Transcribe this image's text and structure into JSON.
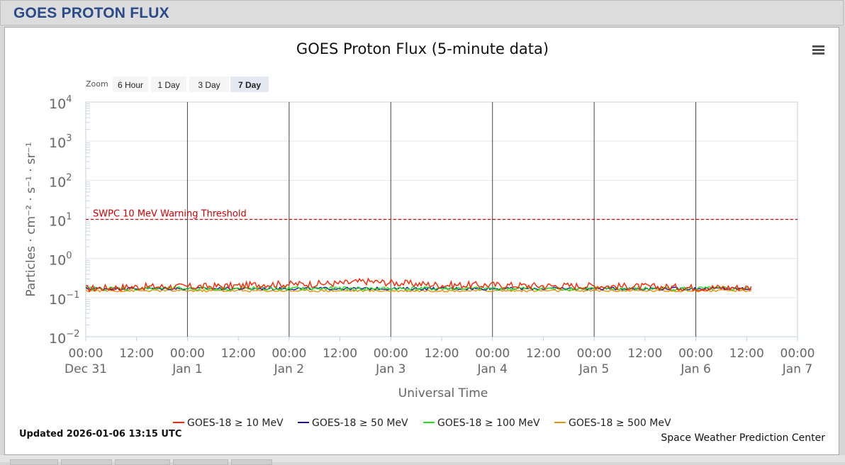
{
  "panel": {
    "title": "GOES PROTON FLUX"
  },
  "chart": {
    "title": "GOES Proton Flux (5-minute data)",
    "menu_icon": "hamburger-menu-icon",
    "zoom_label": "Zoom",
    "zoom_buttons": [
      "6 Hour",
      "1 Day",
      "3 Day",
      "7 Day"
    ],
    "zoom_active": "7 Day",
    "updated": "Updated 2026-01-06 13:15 UTC",
    "credit": "Space Weather Prediction Center"
  },
  "chart_data": {
    "type": "line",
    "title": "GOES Proton Flux (5-minute data)",
    "xlabel": "Universal Time",
    "ylabel": "Particles · cm⁻² · s⁻¹ · sr⁻¹",
    "y_scale": "log",
    "ylim": [
      0.01,
      10000
    ],
    "y_ticks": [
      {
        "base": "10",
        "exp": "4"
      },
      {
        "base": "10",
        "exp": "3"
      },
      {
        "base": "10",
        "exp": "2"
      },
      {
        "base": "10",
        "exp": "1"
      },
      {
        "base": "10",
        "exp": "0"
      },
      {
        "base": "10",
        "exp": "−1"
      },
      {
        "base": "10",
        "exp": "−2"
      }
    ],
    "xlim": [
      "2025-12-31 00:00",
      "2026-01-07 00:00"
    ],
    "x_ticks": [
      {
        "time": "00:00",
        "date": "Dec 31"
      },
      {
        "time": "12:00",
        "date": ""
      },
      {
        "time": "00:00",
        "date": "Jan 1"
      },
      {
        "time": "12:00",
        "date": ""
      },
      {
        "time": "00:00",
        "date": "Jan 2"
      },
      {
        "time": "12:00",
        "date": ""
      },
      {
        "time": "00:00",
        "date": "Jan 3"
      },
      {
        "time": "12:00",
        "date": ""
      },
      {
        "time": "00:00",
        "date": "Jan 4"
      },
      {
        "time": "12:00",
        "date": ""
      },
      {
        "time": "00:00",
        "date": "Jan 5"
      },
      {
        "time": "12:00",
        "date": ""
      },
      {
        "time": "00:00",
        "date": "Jan 6"
      },
      {
        "time": "12:00",
        "date": ""
      },
      {
        "time": "00:00",
        "date": "Jan 7"
      }
    ],
    "day_lines": [
      "2026-01-01 00:00",
      "2026-01-02 00:00",
      "2026-01-03 00:00",
      "2026-01-04 00:00",
      "2026-01-05 00:00",
      "2026-01-06 00:00"
    ],
    "threshold": {
      "label": "SWPC 10 MeV Warning Threshold",
      "value": 10,
      "color": "#cc0000"
    },
    "grid": true,
    "legend_position": "bottom",
    "series": [
      {
        "name": "GOES-18 ≥ 10 MeV",
        "color": "#ff2200",
        "x": [
          "2025-12-31 00:00",
          "2025-12-31 12:00",
          "2026-01-01 00:00",
          "2026-01-01 12:00",
          "2026-01-01 18:00",
          "2026-01-02 00:00",
          "2026-01-02 12:00",
          "2026-01-02 18:00",
          "2026-01-03 00:00",
          "2026-01-03 12:00",
          "2026-01-04 00:00",
          "2026-01-04 12:00",
          "2026-01-05 00:00",
          "2026-01-05 12:00",
          "2026-01-06 00:00",
          "2026-01-06 13:15"
        ],
        "y": [
          0.17,
          0.19,
          0.19,
          0.2,
          0.22,
          0.22,
          0.23,
          0.26,
          0.24,
          0.21,
          0.21,
          0.2,
          0.2,
          0.19,
          0.18,
          0.18
        ]
      },
      {
        "name": "GOES-18 ≥ 50 MeV",
        "color": "#1a10aa",
        "x": [
          "2025-12-31 00:00",
          "2026-01-01 00:00",
          "2026-01-02 00:00",
          "2026-01-03 00:00",
          "2026-01-04 00:00",
          "2026-01-05 00:00",
          "2026-01-06 00:00",
          "2026-01-06 13:15"
        ],
        "y": [
          0.17,
          0.17,
          0.17,
          0.17,
          0.17,
          0.17,
          0.17,
          0.17
        ]
      },
      {
        "name": "GOES-18 ≥ 100 MeV",
        "color": "#22dd22",
        "x": [
          "2025-12-31 00:00",
          "2026-01-01 00:00",
          "2026-01-02 00:00",
          "2026-01-03 00:00",
          "2026-01-04 00:00",
          "2026-01-05 00:00",
          "2026-01-06 00:00",
          "2026-01-06 13:15"
        ],
        "y": [
          0.17,
          0.17,
          0.17,
          0.17,
          0.17,
          0.17,
          0.17,
          0.17
        ]
      },
      {
        "name": "GOES-18 ≥ 500 MeV",
        "color": "#e8900a",
        "x": [
          "2025-12-31 00:00",
          "2026-01-01 00:00",
          "2026-01-02 00:00",
          "2026-01-03 00:00",
          "2026-01-04 00:00",
          "2026-01-05 00:00",
          "2026-01-06 00:00",
          "2026-01-06 13:15"
        ],
        "y": [
          0.15,
          0.15,
          0.15,
          0.15,
          0.15,
          0.15,
          0.15,
          0.15
        ]
      }
    ]
  }
}
